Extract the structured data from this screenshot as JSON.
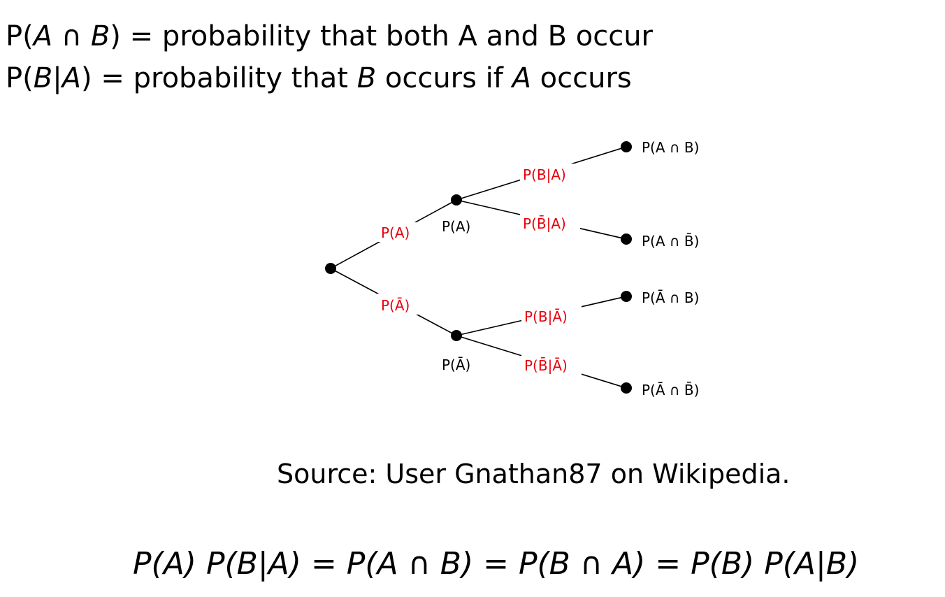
{
  "definitions": {
    "line1": {
      "p1": "P(",
      "a": "A",
      "cap": " ∩ ",
      "b": "B",
      "close": ")",
      "eq": " = ",
      "text": "probability that both A and B occur"
    },
    "line2": {
      "p1": "P(",
      "b": "B",
      "bar": "|",
      "a": "A",
      "close": ")",
      "eq": " = ",
      "text1": "probability that ",
      "b2": "B",
      "text2": " occurs if ",
      "a2": "A",
      "text3": " occurs"
    }
  },
  "tree": {
    "edge_color": "#e8000b",
    "node_color": "#000000",
    "edge_labels": {
      "root_to_A": "P(A)",
      "root_to_notA": "P(Ā)",
      "A_to_AB": "P(B|A)",
      "A_to_AnotB": "P(B̄|A)",
      "notA_to_notAB": "P(B|Ā)",
      "notA_to_notAnotB": "P(B̄|Ā)"
    },
    "node_labels": {
      "A": "P(A)",
      "notA": "P(Ā)",
      "AB": "P(A ∩ B)",
      "AnotB": "P(A ∩ B̄)",
      "notAB": "P(Ā ∩ B)",
      "notAnotB": "P(Ā ∩ B̄)"
    }
  },
  "source": "Source: User Gnathan87 on Wikipedia.",
  "product_rule": {
    "pa": "P(A)",
    "pba": "P(B|A)",
    "eq1": " = ",
    "pab": "P(A ∩ B)",
    "eq2": " = ",
    "pba2": "P(B ∩ A)",
    "eq3": " = ",
    "pb": "P(B)",
    "pab2": "P(A|B)"
  }
}
